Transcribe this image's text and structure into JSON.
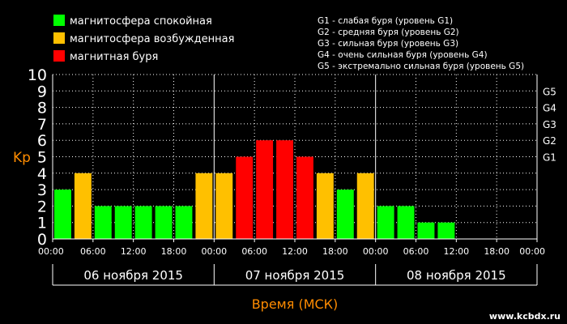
{
  "legend": [
    {
      "label": "магнитосфера спокойная",
      "color": "#00ff00"
    },
    {
      "label": "магнитосфера возбужденная",
      "color": "#ffc000"
    },
    {
      "label": "магнитная буря",
      "color": "#ff0000"
    }
  ],
  "storm_scale_notes": [
    "G1 - слабая буря (уровень G1)",
    "G2 - средняя буря (уровень G2)",
    "G3 - сильная буря (уровень G3)",
    "G4 - очень сильная буря (уровень G4)",
    "G5 - экстремально сильная буря (уровень G5)"
  ],
  "footer": {
    "xaxis_title": "Время (МСК)",
    "site": "www.kcbdx.ru"
  },
  "chart_data": {
    "type": "bar",
    "ylabel": "Kp",
    "xlabel": "Время (МСК)",
    "ylim": [
      0,
      10
    ],
    "y_ticks": [
      0,
      1,
      2,
      3,
      4,
      5,
      6,
      7,
      8,
      9,
      10
    ],
    "g_levels": [
      {
        "label": "G1",
        "value": 5
      },
      {
        "label": "G2",
        "value": 6
      },
      {
        "label": "G3",
        "value": 7
      },
      {
        "label": "G4",
        "value": 8
      },
      {
        "label": "G5",
        "value": 9
      }
    ],
    "x_tick_labels": [
      "00:00",
      "06:00",
      "12:00",
      "18:00",
      "00:00",
      "06:00",
      "12:00",
      "18:00",
      "00:00",
      "06:00",
      "12:00",
      "18:00",
      "00:00"
    ],
    "days": [
      "06 ноября 2015",
      "07 ноября 2015",
      "08 ноября 2015"
    ],
    "values": [
      3,
      4,
      2,
      2,
      2,
      2,
      2,
      4,
      4,
      5,
      6,
      6,
      5,
      4,
      3,
      4,
      2,
      2,
      1,
      1
    ],
    "colors": {
      "quiet": "#00ff00",
      "active": "#ffc000",
      "storm": "#ff0000"
    },
    "axis_color": "#ffffff",
    "label_color": "#ff8c00"
  }
}
